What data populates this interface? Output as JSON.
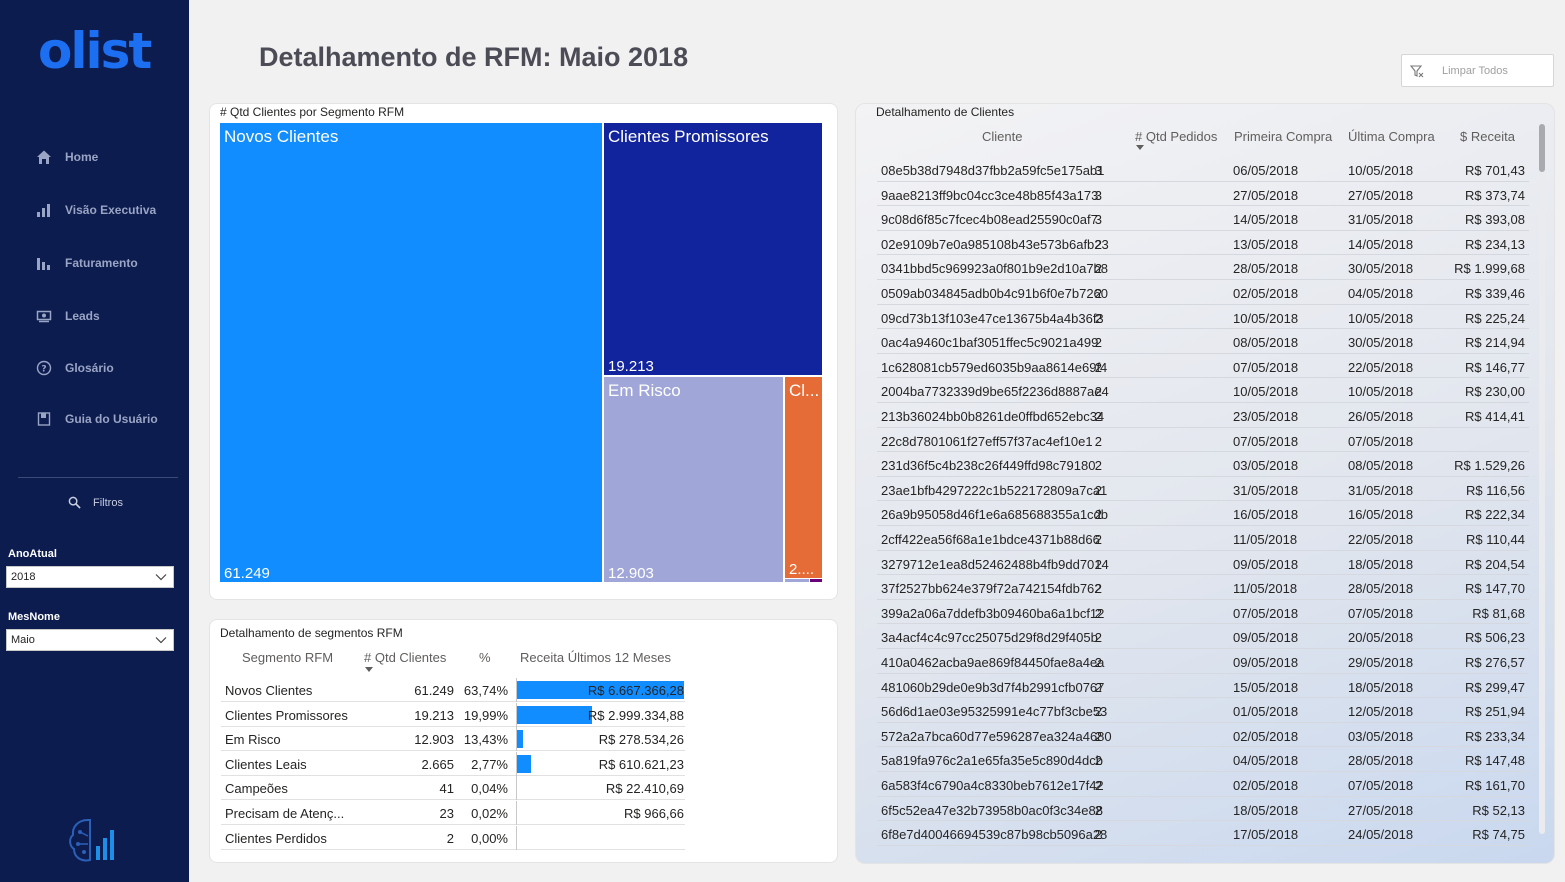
{
  "sidebar": {
    "logo": "olist",
    "nav": [
      {
        "label": "Home",
        "icon": "home-icon"
      },
      {
        "label": "Visão Executiva",
        "icon": "bar-chart-icon"
      },
      {
        "label": "Faturamento",
        "icon": "column-chart-icon"
      },
      {
        "label": "Leads",
        "icon": "money-icon"
      },
      {
        "label": "Glosário",
        "icon": "question-icon"
      },
      {
        "label": "Guia do Usuário",
        "icon": "book-icon"
      }
    ],
    "filters_label": "Filtros",
    "ano": {
      "label": "AnoAtual",
      "value": "2018"
    },
    "mes": {
      "label": "MesNome",
      "value": "Maio"
    }
  },
  "header": {
    "title": "Detalhamento de RFM: Maio 2018",
    "clear_label": "Limpar Todos"
  },
  "treemap": {
    "title": "# Qtd Clientes por Segmento RFM",
    "cells": [
      {
        "name": "Novos Clientes",
        "value": "61.249",
        "color": "#118dff"
      },
      {
        "name": "Clientes Promissores",
        "value": "19.213",
        "color": "#12239e"
      },
      {
        "name": "Em Risco",
        "value": "12.903",
        "color": "#a0a7d8"
      },
      {
        "name": "Cl...",
        "value": "2....",
        "color": "#e66c37"
      }
    ]
  },
  "segments": {
    "title": "Detalhamento de segmentos RFM",
    "headers": [
      "Segmento RFM",
      "# Qtd Clientes",
      "%",
      "Receita Últimos 12 Meses"
    ],
    "rows": [
      {
        "name": "Novos Clientes",
        "qty": "61.249",
        "pct": "63,74%",
        "revenue": "R$ 6.667.366,28",
        "rev_num": 6667366.28
      },
      {
        "name": "Clientes Promissores",
        "qty": "19.213",
        "pct": "19,99%",
        "revenue": "R$ 2.999.334,88",
        "rev_num": 2999334.88
      },
      {
        "name": "Em Risco",
        "qty": "12.903",
        "pct": "13,43%",
        "revenue": "R$ 278.534,26",
        "rev_num": 278534.26
      },
      {
        "name": "Clientes Leais",
        "qty": "2.665",
        "pct": "2,77%",
        "revenue": "R$ 610.621,23",
        "rev_num": 610621.23
      },
      {
        "name": "Campeões",
        "qty": "41",
        "pct": "0,04%",
        "revenue": "R$ 22.410,69",
        "rev_num": 22410.69
      },
      {
        "name": "Precisam de Atenç...",
        "qty": "23",
        "pct": "0,02%",
        "revenue": "R$ 966,66",
        "rev_num": 966.66
      },
      {
        "name": "Clientes Perdidos",
        "qty": "2",
        "pct": "0,00%",
        "revenue": "",
        "rev_num": 0
      }
    ]
  },
  "clients": {
    "title": "Detalhamento de Clientes",
    "headers": [
      "Cliente",
      "# Qtd Pedidos",
      "Primeira Compra",
      "Última Compra",
      "$ Receita"
    ],
    "rows": [
      [
        "08e5b38d7948d37fbb2a59fc5e175ab1",
        "3",
        "06/05/2018",
        "10/05/2018",
        "R$ 701,43"
      ],
      [
        "9aae8213ff9bc04cc3ce48b85f43a173",
        "3",
        "27/05/2018",
        "27/05/2018",
        "R$ 373,74"
      ],
      [
        "9c08d6f85c7fcec4b08ead25590c0af7",
        "3",
        "14/05/2018",
        "31/05/2018",
        "R$ 393,08"
      ],
      [
        "02e9109b7e0a985108b43e573b6afb23",
        "2",
        "13/05/2018",
        "14/05/2018",
        "R$ 234,13"
      ],
      [
        "0341bbd5c969923a0f801b9e2d10a7b8",
        "2",
        "28/05/2018",
        "30/05/2018",
        "R$ 1.999,68"
      ],
      [
        "0509ab034845adb0b4c91b6f0e7b7260",
        "2",
        "02/05/2018",
        "04/05/2018",
        "R$ 339,46"
      ],
      [
        "09cd73b13f103e47ce13675b4a4b36f3",
        "2",
        "10/05/2018",
        "10/05/2018",
        "R$ 225,24"
      ],
      [
        "0ac4a9460c1baf3051ffec5c9021a499",
        "2",
        "08/05/2018",
        "30/05/2018",
        "R$ 214,94"
      ],
      [
        "1c628081cb579ed6035b9aa8614e69f4",
        "2",
        "07/05/2018",
        "22/05/2018",
        "R$ 146,77"
      ],
      [
        "2004ba7732339d9be65f2236d8887ae4",
        "2",
        "10/05/2018",
        "10/05/2018",
        "R$ 230,00"
      ],
      [
        "213b36024bb0b8261de0ffbd652ebc34",
        "2",
        "23/05/2018",
        "26/05/2018",
        "R$ 414,41"
      ],
      [
        "22c8d7801061f27eff57f37ac4ef10e1",
        "2",
        "07/05/2018",
        "07/05/2018",
        ""
      ],
      [
        "231d36f5c4b238c26f449ffd98c79180",
        "2",
        "03/05/2018",
        "08/05/2018",
        "R$ 1.529,26"
      ],
      [
        "23ae1bfb4297222c1b522172809a7ca1",
        "2",
        "31/05/2018",
        "31/05/2018",
        "R$ 116,56"
      ],
      [
        "26a9b95058d46f1e6a685688355a1cdb",
        "2",
        "16/05/2018",
        "16/05/2018",
        "R$ 222,34"
      ],
      [
        "2cff422ea56f68a1e1bdce4371b88d66",
        "2",
        "11/05/2018",
        "22/05/2018",
        "R$ 110,44"
      ],
      [
        "3279712e1ea8d52462488b4fb9dd7014",
        "2",
        "09/05/2018",
        "18/05/2018",
        "R$ 204,54"
      ],
      [
        "37f2527bb624e379f72a742154fdb762",
        "2",
        "11/05/2018",
        "28/05/2018",
        "R$ 147,70"
      ],
      [
        "399a2a06a7ddefb3b09460ba6a1bcf12",
        "2",
        "07/05/2018",
        "07/05/2018",
        "R$ 81,68"
      ],
      [
        "3a4acf4c4c97cc25075d29f8d29f405b",
        "2",
        "09/05/2018",
        "20/05/2018",
        "R$ 506,23"
      ],
      [
        "410a0462acba9ae869f84450fae8a4ea",
        "2",
        "09/05/2018",
        "29/05/2018",
        "R$ 276,57"
      ],
      [
        "481060b29de0e9b3d7f4b2991cfb0767",
        "2",
        "15/05/2018",
        "18/05/2018",
        "R$ 299,47"
      ],
      [
        "56d6d1ae03e95325991e4c77bf3cbe53",
        "2",
        "01/05/2018",
        "12/05/2018",
        "R$ 251,94"
      ],
      [
        "572a2a7bca60d77e596287ea324a4680",
        "2",
        "02/05/2018",
        "03/05/2018",
        "R$ 233,34"
      ],
      [
        "5a819fa976c2a1e65fa35e5c890d4dcb",
        "2",
        "04/05/2018",
        "28/05/2018",
        "R$ 147,48"
      ],
      [
        "6a583f4c6790a4c8330beb7612e17f42",
        "2",
        "02/05/2018",
        "07/05/2018",
        "R$ 161,70"
      ],
      [
        "6f5c52ea47e32b73958b0ac0f3c34e88",
        "2",
        "18/05/2018",
        "27/05/2018",
        "R$ 52,13"
      ],
      [
        "6f8e7d40046694539c87b98cb5096a28",
        "2",
        "17/05/2018",
        "24/05/2018",
        "R$ 74,75"
      ]
    ]
  }
}
